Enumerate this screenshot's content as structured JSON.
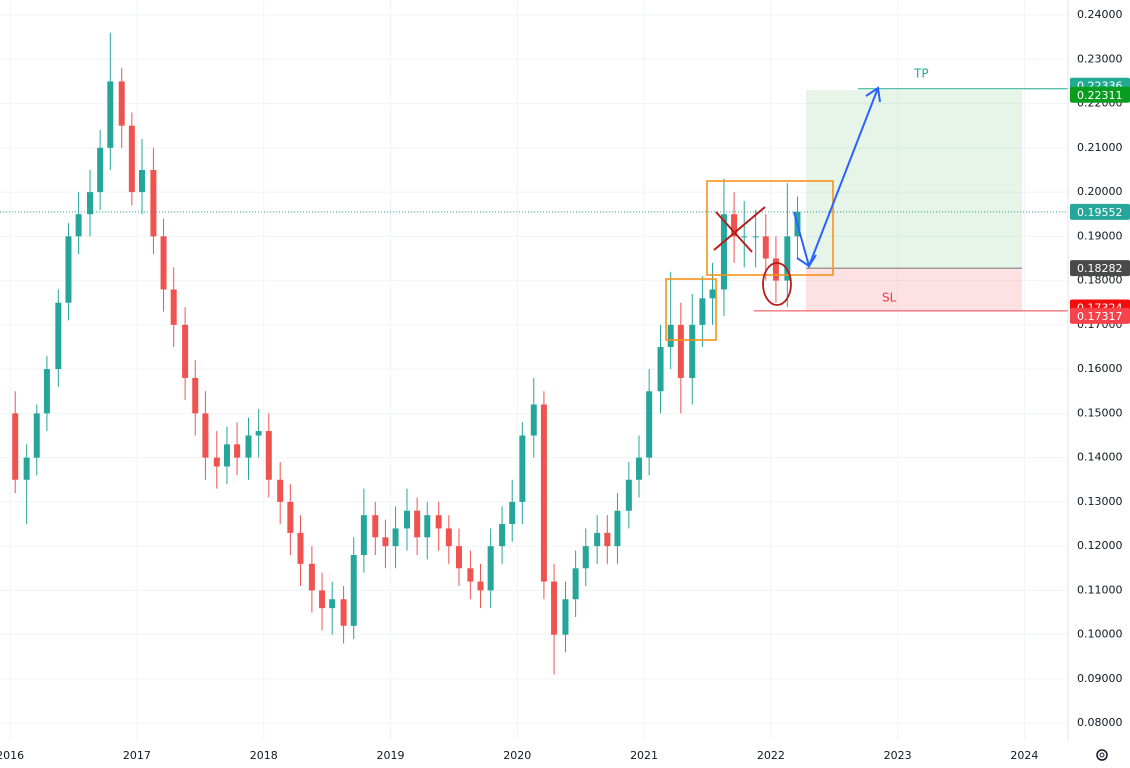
{
  "chart_data": {
    "type": "candlestick",
    "xlim": [
      2015.92,
      2024.32
    ],
    "xticks": [
      2016,
      2017,
      2018,
      2019,
      2020,
      2021,
      2022,
      2023,
      2024
    ],
    "ylim": [
      0.0762,
      0.2434
    ],
    "yticks": [
      {
        "value": 0.08,
        "label": "0.08000"
      },
      {
        "value": 0.09,
        "label": "0.09000"
      },
      {
        "value": 0.1,
        "label": "0.10000"
      },
      {
        "value": 0.11,
        "label": "0.11000"
      },
      {
        "value": 0.12,
        "label": "0.12000"
      },
      {
        "value": 0.13,
        "label": "0.13000"
      },
      {
        "value": 0.14,
        "label": "0.14000"
      },
      {
        "value": 0.15,
        "label": "0.15000"
      },
      {
        "value": 0.16,
        "label": "0.16000"
      },
      {
        "value": 0.17,
        "label": "0.17000"
      },
      {
        "value": 0.18,
        "label": "0.18000"
      },
      {
        "value": 0.19,
        "label": "0.19000"
      },
      {
        "value": 0.2,
        "label": "0.20000"
      },
      {
        "value": 0.21,
        "label": "0.21000"
      },
      {
        "value": 0.22,
        "label": "0.22000"
      },
      {
        "value": 0.23,
        "label": "0.23000"
      },
      {
        "value": 0.24,
        "label": "0.24000"
      }
    ],
    "grid": true,
    "up_color": "#26a69a",
    "down_color": "#ef5350",
    "x": [
      2016.04,
      2016.13,
      2016.21,
      2016.29,
      2016.38,
      2016.46,
      2016.54,
      2016.63,
      2016.71,
      2016.79,
      2016.88,
      2016.96,
      2017.04,
      2017.13,
      2017.21,
      2017.29,
      2017.38,
      2017.46,
      2017.54,
      2017.63,
      2017.71,
      2017.79,
      2017.88,
      2017.96,
      2018.04,
      2018.13,
      2018.21,
      2018.29,
      2018.38,
      2018.46,
      2018.54,
      2018.63,
      2018.71,
      2018.79,
      2018.88,
      2018.96,
      2019.04,
      2019.13,
      2019.21,
      2019.29,
      2019.38,
      2019.46,
      2019.54,
      2019.63,
      2019.71,
      2019.79,
      2019.88,
      2019.96,
      2020.04,
      2020.13,
      2020.21,
      2020.29,
      2020.38,
      2020.46,
      2020.54,
      2020.63,
      2020.71,
      2020.79,
      2020.88,
      2020.96,
      2021.04,
      2021.13,
      2021.21,
      2021.29,
      2021.38,
      2021.46,
      2021.54,
      2021.63,
      2021.71,
      2021.79,
      2021.88,
      2021.96,
      2022.04,
      2022.13,
      2022.21
    ],
    "open": [
      0.15,
      0.135,
      0.14,
      0.15,
      0.16,
      0.175,
      0.19,
      0.195,
      0.2,
      0.21,
      0.225,
      0.215,
      0.2,
      0.205,
      0.19,
      0.178,
      0.17,
      0.158,
      0.15,
      0.14,
      0.138,
      0.143,
      0.14,
      0.145,
      0.146,
      0.135,
      0.13,
      0.123,
      0.116,
      0.11,
      0.106,
      0.108,
      0.102,
      0.118,
      0.127,
      0.122,
      0.12,
      0.124,
      0.128,
      0.122,
      0.127,
      0.124,
      0.12,
      0.115,
      0.112,
      0.11,
      0.12,
      0.125,
      0.13,
      0.145,
      0.152,
      0.112,
      0.1,
      0.108,
      0.115,
      0.12,
      0.123,
      0.12,
      0.128,
      0.135,
      0.14,
      0.155,
      0.165,
      0.17,
      0.158,
      0.17,
      0.176,
      0.178,
      0.195,
      0.19,
      0.19,
      0.19,
      0.185,
      0.18,
      0.19
    ],
    "high": [
      0.155,
      0.143,
      0.152,
      0.163,
      0.178,
      0.193,
      0.2,
      0.205,
      0.214,
      0.236,
      0.228,
      0.218,
      0.212,
      0.21,
      0.194,
      0.183,
      0.174,
      0.162,
      0.155,
      0.146,
      0.147,
      0.148,
      0.149,
      0.151,
      0.15,
      0.139,
      0.134,
      0.127,
      0.12,
      0.114,
      0.112,
      0.111,
      0.122,
      0.133,
      0.13,
      0.126,
      0.129,
      0.133,
      0.131,
      0.13,
      0.13,
      0.127,
      0.124,
      0.119,
      0.116,
      0.124,
      0.129,
      0.135,
      0.148,
      0.158,
      0.155,
      0.116,
      0.112,
      0.119,
      0.124,
      0.127,
      0.127,
      0.132,
      0.139,
      0.145,
      0.16,
      0.17,
      0.182,
      0.175,
      0.177,
      0.181,
      0.184,
      0.203,
      0.2,
      0.198,
      0.196,
      0.195,
      0.19,
      0.202,
      0.199
    ],
    "low": [
      0.132,
      0.125,
      0.136,
      0.146,
      0.156,
      0.171,
      0.186,
      0.19,
      0.196,
      0.205,
      0.21,
      0.197,
      0.195,
      0.186,
      0.173,
      0.165,
      0.153,
      0.145,
      0.135,
      0.133,
      0.134,
      0.136,
      0.135,
      0.14,
      0.131,
      0.125,
      0.118,
      0.111,
      0.105,
      0.101,
      0.1,
      0.098,
      0.099,
      0.114,
      0.118,
      0.115,
      0.115,
      0.119,
      0.118,
      0.117,
      0.119,
      0.116,
      0.111,
      0.108,
      0.106,
      0.106,
      0.116,
      0.121,
      0.125,
      0.14,
      0.108,
      0.091,
      0.096,
      0.104,
      0.111,
      0.116,
      0.116,
      0.116,
      0.124,
      0.131,
      0.136,
      0.15,
      0.16,
      0.15,
      0.152,
      0.165,
      0.17,
      0.172,
      0.184,
      0.183,
      0.183,
      0.18,
      0.175,
      0.174,
      0.185
    ],
    "close": [
      0.135,
      0.14,
      0.15,
      0.16,
      0.175,
      0.19,
      0.195,
      0.2,
      0.21,
      0.225,
      0.215,
      0.2,
      0.205,
      0.19,
      0.178,
      0.17,
      0.158,
      0.15,
      0.14,
      0.138,
      0.143,
      0.14,
      0.145,
      0.146,
      0.135,
      0.13,
      0.123,
      0.116,
      0.11,
      0.106,
      0.108,
      0.102,
      0.118,
      0.127,
      0.122,
      0.12,
      0.124,
      0.128,
      0.122,
      0.127,
      0.124,
      0.12,
      0.115,
      0.112,
      0.11,
      0.12,
      0.125,
      0.13,
      0.145,
      0.152,
      0.112,
      0.1,
      0.108,
      0.115,
      0.12,
      0.123,
      0.12,
      0.128,
      0.135,
      0.14,
      0.155,
      0.165,
      0.17,
      0.158,
      0.17,
      0.176,
      0.178,
      0.195,
      0.19,
      0.19,
      0.19,
      0.185,
      0.18,
      0.19,
      0.19552
    ],
    "price_labels": [
      {
        "value": 0.22336,
        "label": "0.22336",
        "color": "#22ab94"
      },
      {
        "value": 0.22311,
        "label": "0.22311",
        "color": "#089d1e"
      },
      {
        "value": 0.19552,
        "label": "0.19552",
        "color": "#26a69a"
      },
      {
        "value": 0.18282,
        "label": "0.18282",
        "color": "#4a4a4a"
      },
      {
        "value": 0.17324,
        "label": "0.17324",
        "color": "#f20c0c"
      },
      {
        "value": 0.17317,
        "label": "0.17317",
        "color": "#f5424b"
      }
    ],
    "annotations": {
      "tp": "TP",
      "sl": "SL"
    }
  }
}
